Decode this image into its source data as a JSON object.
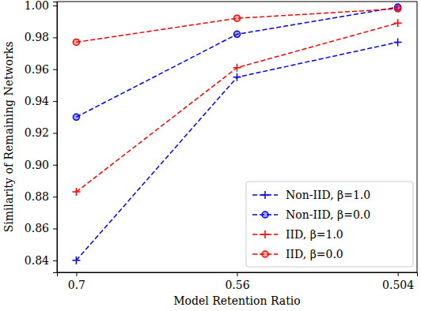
{
  "chart_data": {
    "type": "line",
    "x_label": "Model Retention Ratio",
    "y_label": "Similarity of Remaining Networks",
    "categories": [
      "0.7",
      "0.56",
      "0.504"
    ],
    "ylim": [
      0.8325,
      1.0025
    ],
    "yticks": [
      0.84,
      0.86,
      0.88,
      {
        "value": 0.9,
        "label": "0.90"
      },
      0.92,
      0.94,
      0.96,
      0.98,
      {
        "value": 1.0,
        "label": "1.00"
      }
    ],
    "grid": false,
    "legend": "lower right",
    "series": [
      {
        "name": "Non-IID, β=1.0",
        "color": "#0000ff",
        "marker": "plus",
        "line_style": "dashed",
        "values": [
          0.84,
          0.955,
          0.977
        ]
      },
      {
        "name": "Non-IID, β=0.0",
        "color": "#0000ff",
        "marker": "circle",
        "line_style": "dashed",
        "values": [
          0.93,
          0.982,
          0.999
        ]
      },
      {
        "name": "IID, β=1.0",
        "color": "#ff0000",
        "marker": "plus",
        "line_style": "dashed",
        "values": [
          0.883,
          0.961,
          0.989
        ]
      },
      {
        "name": "IID, β=0.0",
        "color": "#ff0000",
        "marker": "circle",
        "line_style": "dashed",
        "values": [
          0.977,
          0.992,
          0.998
        ]
      }
    ]
  }
}
